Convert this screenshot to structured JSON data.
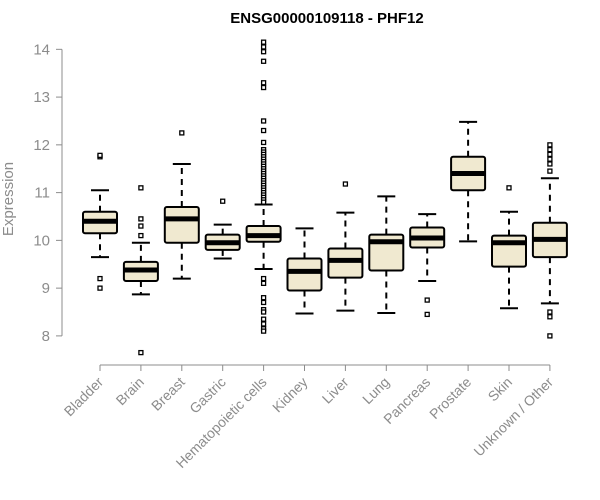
{
  "chart_data": {
    "type": "box",
    "title": "ENSG00000109118 - PHF12",
    "ylabel": "Expression",
    "xlabel": "",
    "ylim": [
      7.6,
      14.3
    ],
    "yticks": [
      8,
      9,
      10,
      11,
      12,
      13,
      14
    ],
    "grid": false,
    "box_fill": "#f0e9d0",
    "categories": [
      "Bladder",
      "Brain",
      "Breast",
      "Gastric",
      "Hematopoietic cells",
      "Kidney",
      "Liver",
      "Lung",
      "Pancreas",
      "Prostate",
      "Skin",
      "Unknown / Other"
    ],
    "boxes": [
      {
        "whisker_low": 9.65,
        "q1": 10.15,
        "median": 10.4,
        "q3": 10.6,
        "whisker_high": 11.05,
        "outliers": [
          11.75,
          11.78,
          9.2,
          9.0
        ]
      },
      {
        "whisker_low": 8.87,
        "q1": 9.15,
        "median": 9.38,
        "q3": 9.55,
        "whisker_high": 9.95,
        "outliers": [
          11.1,
          10.45,
          10.3,
          10.1,
          7.65
        ]
      },
      {
        "whisker_low": 9.2,
        "q1": 9.95,
        "median": 10.45,
        "q3": 10.7,
        "whisker_high": 11.6,
        "outliers": [
          12.25
        ]
      },
      {
        "whisker_low": 9.62,
        "q1": 9.8,
        "median": 9.95,
        "q3": 10.12,
        "whisker_high": 10.33,
        "outliers": [
          10.82
        ]
      },
      {
        "whisker_low": 9.4,
        "q1": 9.97,
        "median": 10.1,
        "q3": 10.3,
        "whisker_high": 10.75,
        "outliers": [
          14.15,
          14.05,
          13.95,
          13.75,
          13.3,
          13.2,
          12.5,
          12.3,
          12.05,
          11.9,
          11.85,
          11.8,
          11.75,
          11.7,
          11.65,
          11.6,
          11.55,
          11.5,
          11.45,
          11.4,
          11.35,
          11.3,
          11.25,
          11.2,
          11.15,
          11.1,
          11.05,
          11.0,
          10.95,
          10.9,
          10.85,
          10.8,
          9.2,
          9.1,
          8.8,
          8.7,
          8.55,
          8.5,
          8.35,
          8.25,
          8.15,
          8.1
        ]
      },
      {
        "whisker_low": 8.47,
        "q1": 8.95,
        "median": 9.35,
        "q3": 9.62,
        "whisker_high": 10.25,
        "outliers": []
      },
      {
        "whisker_low": 8.53,
        "q1": 9.22,
        "median": 9.58,
        "q3": 9.83,
        "whisker_high": 10.58,
        "outliers": [
          11.18
        ]
      },
      {
        "whisker_low": 8.48,
        "q1": 9.37,
        "median": 9.97,
        "q3": 10.12,
        "whisker_high": 10.92,
        "outliers": []
      },
      {
        "whisker_low": 9.15,
        "q1": 9.85,
        "median": 10.05,
        "q3": 10.27,
        "whisker_high": 10.55,
        "outliers": [
          8.75,
          8.45
        ]
      },
      {
        "whisker_low": 9.98,
        "q1": 11.05,
        "median": 11.4,
        "q3": 11.75,
        "whisker_high": 12.48,
        "outliers": []
      },
      {
        "whisker_low": 8.58,
        "q1": 9.45,
        "median": 9.95,
        "q3": 10.1,
        "whisker_high": 10.6,
        "outliers": [
          11.1
        ]
      },
      {
        "whisker_low": 8.68,
        "q1": 9.65,
        "median": 10.02,
        "q3": 10.37,
        "whisker_high": 11.3,
        "outliers": [
          12.0,
          11.9,
          11.8,
          11.7,
          11.6,
          11.45,
          8.5,
          8.4,
          8.0
        ]
      }
    ]
  }
}
